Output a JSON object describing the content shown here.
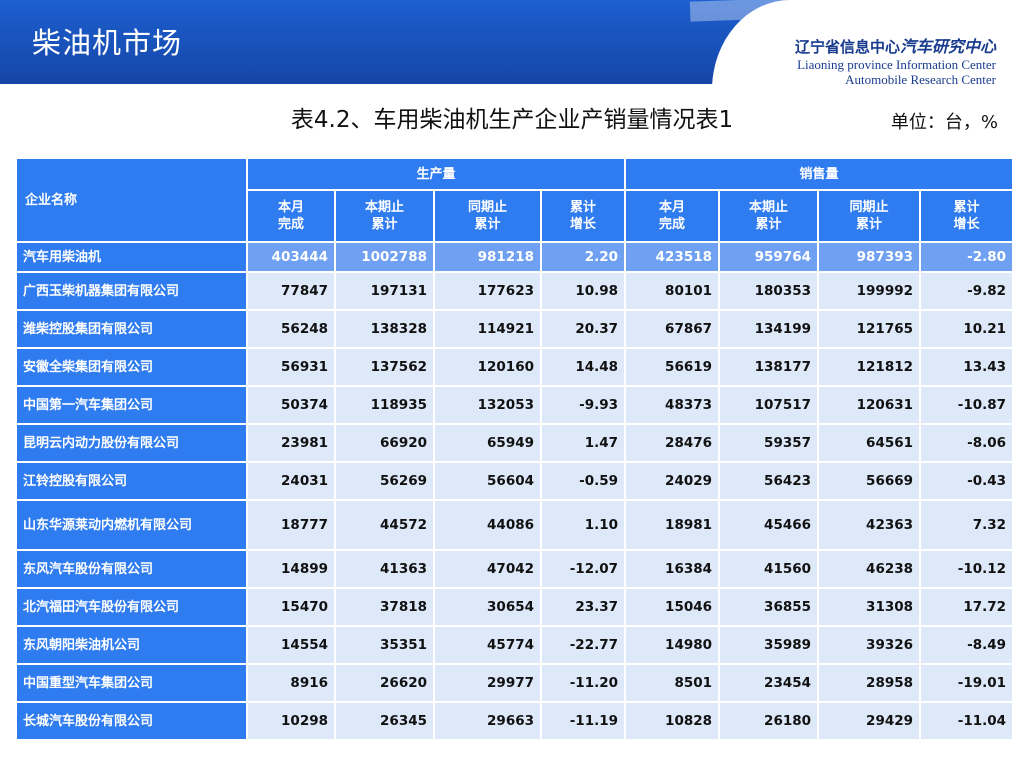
{
  "header": {
    "banner_title": "柴油机市场",
    "org_cn_prefix": "辽宁省信息中心",
    "org_cn_strong": "汽车研究中心",
    "org_en_line1": "Liaoning province Information Center",
    "org_en_line2": "Automobile Research Center"
  },
  "title": "表4.2、车用柴油机生产企业产销量情况表1",
  "unit": "单位：台，%",
  "table": {
    "company_header": "企业名称",
    "group_production": "生产量",
    "group_sales": "销售量",
    "sub_headers": [
      {
        "l1": "本月",
        "l2": "完成"
      },
      {
        "l1": "本期止",
        "l2": "累计"
      },
      {
        "l1": "同期止",
        "l2": "累计"
      },
      {
        "l1": "累计",
        "l2": "增长"
      },
      {
        "l1": "本月",
        "l2": "完成"
      },
      {
        "l1": "本期止",
        "l2": "累计"
      },
      {
        "l1": "同期止",
        "l2": "累计"
      },
      {
        "l1": "累计",
        "l2": "增长"
      }
    ],
    "rows": [
      {
        "name": "汽车用柴油机",
        "values": [
          "403444",
          "1002788",
          "981218",
          "2.20",
          "423518",
          "959764",
          "987393",
          "-2.80"
        ]
      },
      {
        "name": "广西玉柴机器集团有限公司",
        "values": [
          "77847",
          "197131",
          "177623",
          "10.98",
          "80101",
          "180353",
          "199992",
          "-9.82"
        ]
      },
      {
        "name": "潍柴控股集团有限公司",
        "values": [
          "56248",
          "138328",
          "114921",
          "20.37",
          "67867",
          "134199",
          "121765",
          "10.21"
        ]
      },
      {
        "name": "安徽全柴集团有限公司",
        "values": [
          "56931",
          "137562",
          "120160",
          "14.48",
          "56619",
          "138177",
          "121812",
          "13.43"
        ]
      },
      {
        "name": "中国第一汽车集团公司",
        "values": [
          "50374",
          "118935",
          "132053",
          "-9.93",
          "48373",
          "107517",
          "120631",
          "-10.87"
        ]
      },
      {
        "name": "昆明云内动力股份有限公司",
        "values": [
          "23981",
          "66920",
          "65949",
          "1.47",
          "28476",
          "59357",
          "64561",
          "-8.06"
        ]
      },
      {
        "name": "江铃控股有限公司",
        "values": [
          "24031",
          "56269",
          "56604",
          "-0.59",
          "24029",
          "56423",
          "56669",
          "-0.43"
        ]
      },
      {
        "name": "山东华源莱动内燃机有限公司",
        "values": [
          "18777",
          "44572",
          "44086",
          "1.10",
          "18981",
          "45466",
          "42363",
          "7.32"
        ]
      },
      {
        "name": "东风汽车股份有限公司",
        "values": [
          "14899",
          "41363",
          "47042",
          "-12.07",
          "16384",
          "41560",
          "46238",
          "-10.12"
        ]
      },
      {
        "name": "北汽福田汽车股份有限公司",
        "values": [
          "15470",
          "37818",
          "30654",
          "23.37",
          "15046",
          "36855",
          "31308",
          "17.72"
        ]
      },
      {
        "name": "东风朝阳柴油机公司",
        "values": [
          "14554",
          "35351",
          "45774",
          "-22.77",
          "14980",
          "35989",
          "39326",
          "-8.49"
        ]
      },
      {
        "name": "中国重型汽车集团公司",
        "values": [
          "8916",
          "26620",
          "29977",
          "-11.20",
          "8501",
          "23454",
          "28958",
          "-19.01"
        ]
      },
      {
        "name": "长城汽车股份有限公司",
        "values": [
          "10298",
          "26345",
          "29663",
          "-11.19",
          "10828",
          "26180",
          "29429",
          "-11.04"
        ]
      }
    ]
  },
  "colors": {
    "header_blue": "#2f7cf0",
    "cell_light": "#dde9f9",
    "total_row": "#6fa0f2",
    "banner": "#1d5fd0"
  }
}
